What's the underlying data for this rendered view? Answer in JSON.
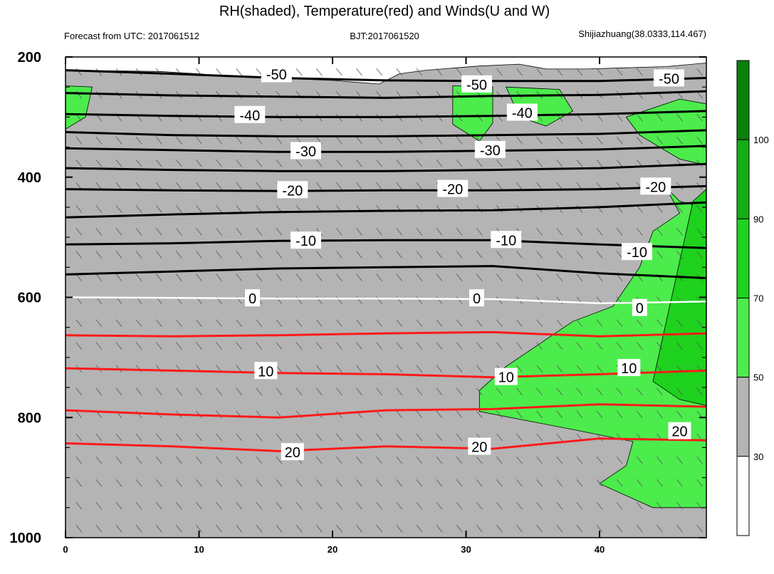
{
  "header": {
    "title": "RH(shaded), Temperature(red) and Winds(U and W)",
    "left_sub": "Forecast from UTC: 2017061512",
    "center_sub": "BJT:2017061520",
    "right_sub": "Shijiazhuang(38.0333,114.467)"
  },
  "colors": {
    "rh_30_50": "#b4b4b4",
    "rh_50_70": "#4cec4c",
    "rh_70_90": "#1ed21e",
    "rh_90_100": "#15ad15",
    "rh_100_plus": "#0b800b",
    "temp_warm": "#ff1a1a",
    "temp_cold": "#000000",
    "zero_isotherm": "#ffffff"
  },
  "chart_data": {
    "type": "contour-cross-section",
    "xlim": [
      0,
      48
    ],
    "ylim": [
      200,
      1000
    ],
    "y_axis": "pressure (inverted)",
    "x_ticks": [
      "0",
      "10",
      "20",
      "30",
      "40"
    ],
    "y_ticks": [
      "200",
      "400",
      "600",
      "800",
      "1000"
    ],
    "colorbar": {
      "levels": [
        "30",
        "50",
        "70",
        "90",
        "100"
      ]
    },
    "isotherms": [
      {
        "value": -50,
        "pts": [
          [
            0,
            222
          ],
          [
            8,
            228
          ],
          [
            16,
            235
          ],
          [
            24,
            239
          ],
          [
            32,
            240
          ],
          [
            40,
            240
          ],
          [
            48,
            235
          ]
        ]
      },
      {
        "value": -45,
        "pts": [
          [
            0,
            260
          ],
          [
            8,
            264
          ],
          [
            16,
            266
          ],
          [
            24,
            268
          ],
          [
            32,
            265
          ],
          [
            40,
            263
          ],
          [
            48,
            257
          ]
        ]
      },
      {
        "value": -40,
        "pts": [
          [
            0,
            295
          ],
          [
            8,
            298
          ],
          [
            16,
            300
          ],
          [
            24,
            300
          ],
          [
            32,
            298
          ],
          [
            40,
            295
          ],
          [
            48,
            290
          ]
        ]
      },
      {
        "value": -35,
        "pts": [
          [
            0,
            325
          ],
          [
            8,
            330
          ],
          [
            16,
            332
          ],
          [
            24,
            332
          ],
          [
            32,
            330
          ],
          [
            40,
            328
          ],
          [
            48,
            322
          ]
        ]
      },
      {
        "value": -30,
        "pts": [
          [
            0,
            352
          ],
          [
            8,
            355
          ],
          [
            16,
            358
          ],
          [
            24,
            358
          ],
          [
            32,
            356
          ],
          [
            40,
            354
          ],
          [
            48,
            348
          ]
        ]
      },
      {
        "value": -25,
        "pts": [
          [
            0,
            385
          ],
          [
            8,
            388
          ],
          [
            16,
            390
          ],
          [
            24,
            390
          ],
          [
            32,
            388
          ],
          [
            40,
            385
          ],
          [
            48,
            378
          ]
        ]
      },
      {
        "value": -20,
        "pts": [
          [
            0,
            420
          ],
          [
            8,
            422
          ],
          [
            16,
            423
          ],
          [
            24,
            422
          ],
          [
            32,
            422
          ],
          [
            40,
            420
          ],
          [
            48,
            415
          ]
        ]
      },
      {
        "value": -15,
        "pts": [
          [
            0,
            467
          ],
          [
            8,
            462
          ],
          [
            16,
            458
          ],
          [
            24,
            456
          ],
          [
            32,
            455
          ],
          [
            40,
            450
          ],
          [
            48,
            442
          ]
        ]
      },
      {
        "value": -10,
        "pts": [
          [
            0,
            512
          ],
          [
            8,
            510
          ],
          [
            16,
            506
          ],
          [
            24,
            505
          ],
          [
            32,
            505
          ],
          [
            40,
            512
          ],
          [
            48,
            518
          ]
        ]
      },
      {
        "value": -5,
        "pts": [
          [
            0,
            562
          ],
          [
            8,
            557
          ],
          [
            16,
            552
          ],
          [
            24,
            550
          ],
          [
            32,
            548
          ],
          [
            40,
            560
          ],
          [
            48,
            568
          ]
        ]
      },
      {
        "value": 0,
        "pts": [
          [
            0,
            600
          ],
          [
            8,
            601
          ],
          [
            16,
            602
          ],
          [
            24,
            602
          ],
          [
            32,
            603
          ],
          [
            40,
            610
          ],
          [
            48,
            607
          ]
        ]
      },
      {
        "value": 5,
        "pts": [
          [
            0,
            663
          ],
          [
            8,
            665
          ],
          [
            16,
            663
          ],
          [
            24,
            660
          ],
          [
            32,
            658
          ],
          [
            40,
            665
          ],
          [
            48,
            660
          ]
        ]
      },
      {
        "value": 10,
        "pts": [
          [
            0,
            718
          ],
          [
            8,
            722
          ],
          [
            16,
            726
          ],
          [
            24,
            728
          ],
          [
            32,
            733
          ],
          [
            40,
            728
          ],
          [
            48,
            722
          ]
        ]
      },
      {
        "value": 15,
        "pts": [
          [
            0,
            788
          ],
          [
            8,
            795
          ],
          [
            16,
            800
          ],
          [
            24,
            788
          ],
          [
            32,
            786
          ],
          [
            40,
            778
          ],
          [
            48,
            782
          ]
        ]
      },
      {
        "value": 20,
        "pts": [
          [
            0,
            843
          ],
          [
            8,
            848
          ],
          [
            16,
            856
          ],
          [
            24,
            848
          ],
          [
            32,
            852
          ],
          [
            40,
            835
          ],
          [
            48,
            838
          ]
        ]
      }
    ],
    "isotherm_labels": [
      {
        "text": "-50",
        "x": 15.8,
        "y": 229
      },
      {
        "text": "-50",
        "x": 30.8,
        "y": 246
      },
      {
        "text": "-50",
        "x": 45.2,
        "y": 236
      },
      {
        "text": "-40",
        "x": 13.8,
        "y": 297
      },
      {
        "text": "-40",
        "x": 34.2,
        "y": 293
      },
      {
        "text": "-30",
        "x": 18.0,
        "y": 357
      },
      {
        "text": "-30",
        "x": 31.8,
        "y": 355
      },
      {
        "text": "-20",
        "x": 17.0,
        "y": 422
      },
      {
        "text": "-20",
        "x": 29.0,
        "y": 420
      },
      {
        "text": "-20",
        "x": 44.2,
        "y": 416
      },
      {
        "text": "-10",
        "x": 18.0,
        "y": 506
      },
      {
        "text": "-10",
        "x": 33.0,
        "y": 505
      },
      {
        "text": "-10",
        "x": 42.8,
        "y": 525
      },
      {
        "text": "0",
        "x": 14.0,
        "y": 602
      },
      {
        "text": "0",
        "x": 30.8,
        "y": 602
      },
      {
        "text": "0",
        "x": 43.0,
        "y": 618
      },
      {
        "text": "10",
        "x": 15.0,
        "y": 723
      },
      {
        "text": "10",
        "x": 33.0,
        "y": 733
      },
      {
        "text": "10",
        "x": 42.2,
        "y": 718
      },
      {
        "text": "20",
        "x": 17.0,
        "y": 858
      },
      {
        "text": "20",
        "x": 31.0,
        "y": 849
      },
      {
        "text": "20",
        "x": 46.0,
        "y": 823
      }
    ],
    "rh_regions": [
      {
        "band": "30-50",
        "pts": [
          [
            0,
            222
          ],
          [
            7,
            224
          ],
          [
            10,
            228
          ],
          [
            12,
            232
          ],
          [
            20,
            239
          ],
          [
            23.5,
            245
          ],
          [
            25,
            228
          ],
          [
            27,
            222
          ],
          [
            31,
            215
          ],
          [
            34,
            212
          ],
          [
            36,
            220
          ],
          [
            39,
            220
          ],
          [
            42,
            218
          ],
          [
            45,
            216
          ],
          [
            48,
            210
          ],
          [
            48,
            1000
          ],
          [
            0,
            1000
          ]
        ]
      },
      {
        "band": "50-70",
        "pts": [
          [
            0,
            248
          ],
          [
            2,
            250
          ],
          [
            1.5,
            300
          ],
          [
            0,
            320
          ]
        ]
      },
      {
        "band": "50-70",
        "pts": [
          [
            29,
            248
          ],
          [
            32,
            250
          ],
          [
            32,
            310
          ],
          [
            31,
            340
          ],
          [
            29,
            312
          ]
        ]
      },
      {
        "band": "50-70",
        "pts": [
          [
            33,
            250
          ],
          [
            37,
            254
          ],
          [
            38,
            290
          ],
          [
            36,
            315
          ],
          [
            34,
            300
          ]
        ]
      },
      {
        "band": "50-70",
        "pts": [
          [
            42,
            300
          ],
          [
            46,
            270
          ],
          [
            48,
            278
          ],
          [
            48,
            380
          ],
          [
            46,
            370
          ],
          [
            43,
            330
          ]
        ]
      },
      {
        "band": "50-70",
        "pts": [
          [
            45,
            418
          ],
          [
            46,
            440
          ],
          [
            48,
            452
          ],
          [
            48,
            950
          ],
          [
            44,
            950
          ],
          [
            40,
            910
          ],
          [
            42,
            880
          ],
          [
            42.5,
            840
          ],
          [
            38,
            820
          ],
          [
            31,
            790
          ],
          [
            31,
            755
          ],
          [
            33,
            715
          ],
          [
            36,
            670
          ],
          [
            38,
            640
          ],
          [
            41,
            615
          ],
          [
            43,
            550
          ],
          [
            44,
            490
          ],
          [
            46,
            460
          ]
        ]
      },
      {
        "band": "70-90",
        "pts": [
          [
            47,
            440
          ],
          [
            48,
            420
          ],
          [
            48,
            780
          ],
          [
            46,
            770
          ],
          [
            44,
            740
          ]
        ]
      }
    ],
    "wind_barbs_note": "wind barbs drawn as tiny slanted strokes across the panel"
  }
}
